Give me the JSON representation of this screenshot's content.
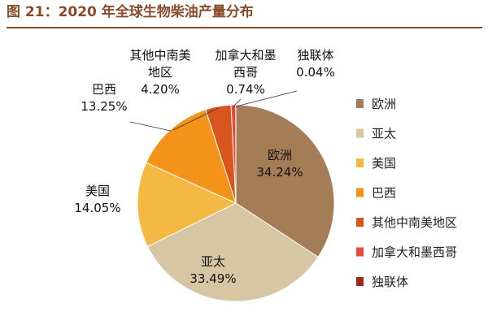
{
  "figure": {
    "title": "图 21：2020 年全球生物柴油产量分布"
  },
  "chart_data": {
    "type": "pie",
    "title": "",
    "legend_position": "right",
    "slices": [
      {
        "name": "欧洲",
        "value": 34.24,
        "value_label": "34.24%",
        "color": "#a47c55"
      },
      {
        "name": "亚太",
        "value": 33.49,
        "value_label": "33.49%",
        "color": "#d7c6a4"
      },
      {
        "name": "美国",
        "value": 14.05,
        "value_label": "14.05%",
        "color": "#f5b842"
      },
      {
        "name": "巴西",
        "value": 13.25,
        "value_label": "13.25%",
        "color": "#f39318"
      },
      {
        "name": "其他中南美地区",
        "value": 4.2,
        "value_label": "4.20%",
        "color": "#d8551e"
      },
      {
        "name": "加拿大和墨西哥",
        "value": 0.74,
        "value_label": "0.74%",
        "color": "#e84a3a"
      },
      {
        "name": "独联体",
        "value": 0.04,
        "value_label": "0.04%",
        "color": "#a02819"
      }
    ],
    "slice_label_lines": [
      [
        "欧洲"
      ],
      [
        "亚太"
      ],
      [
        "美国"
      ],
      [
        "巴西"
      ],
      [
        "其他中南美",
        "地区"
      ],
      [
        "加拿大和墨",
        "西哥"
      ],
      [
        "独联体"
      ]
    ]
  }
}
